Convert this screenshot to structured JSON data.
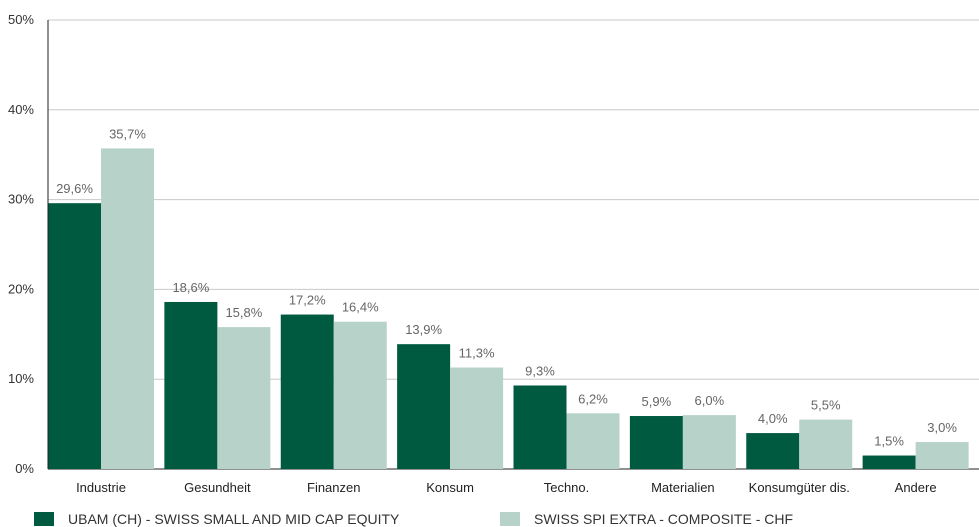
{
  "chart_data": {
    "type": "bar",
    "categories": [
      "Industrie",
      "Gesundheit",
      "Finanzen",
      "Konsum",
      "Techno.",
      "Materialien",
      "Konsumgüter dis.",
      "Andere"
    ],
    "series": [
      {
        "name": "UBAM (CH) - SWISS SMALL AND MID CAP EQUITY",
        "values": [
          29.6,
          18.6,
          17.2,
          13.9,
          9.3,
          5.9,
          4.0,
          1.5
        ],
        "labels": [
          "29,6%",
          "18,6%",
          "17,2%",
          "13,9%",
          "9,3%",
          "5,9%",
          "4,0%",
          "1,5%"
        ],
        "color": "#005a3f"
      },
      {
        "name": "SWISS SPI EXTRA - COMPOSITE - CHF",
        "values": [
          35.7,
          15.8,
          16.4,
          11.3,
          6.2,
          6.0,
          5.5,
          3.0
        ],
        "labels": [
          "35,7%",
          "15,8%",
          "16,4%",
          "11,3%",
          "6,2%",
          "6,0%",
          "5,5%",
          "3,0%"
        ],
        "color": "#b7d2c9"
      }
    ],
    "y_ticks": [
      "0%",
      "10%",
      "20%",
      "30%",
      "40%",
      "50%"
    ],
    "ylim": [
      0,
      50
    ],
    "grid": true,
    "legend_position": "bottom-left"
  }
}
